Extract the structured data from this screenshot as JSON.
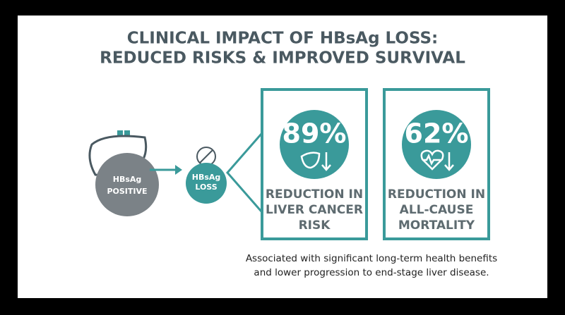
{
  "header": {
    "title_lines": [
      "CLINICAL IMPACT OF HBsAg LOSS:",
      "REDUCED RISKS & IMPROVED SURVIVAL"
    ]
  },
  "nodes": [
    {
      "label_lines": [
        "HBsAg",
        "POSITIVE"
      ]
    },
    {
      "label_lines": [
        "HBsAg",
        "LOSS"
      ]
    }
  ],
  "stats": [
    {
      "value": "89%",
      "label_lines": [
        "REDUCTION IN",
        "LIVER CANCER",
        "RISK"
      ]
    },
    {
      "value": "62%",
      "label_lines": [
        "REDUCTION IN",
        "ALL-CAUSE",
        "MORTALITY"
      ]
    }
  ],
  "footer": {
    "lines": [
      "Associated with significant long-term health benefits",
      "and lower progression to end-stage liver disease."
    ]
  }
}
